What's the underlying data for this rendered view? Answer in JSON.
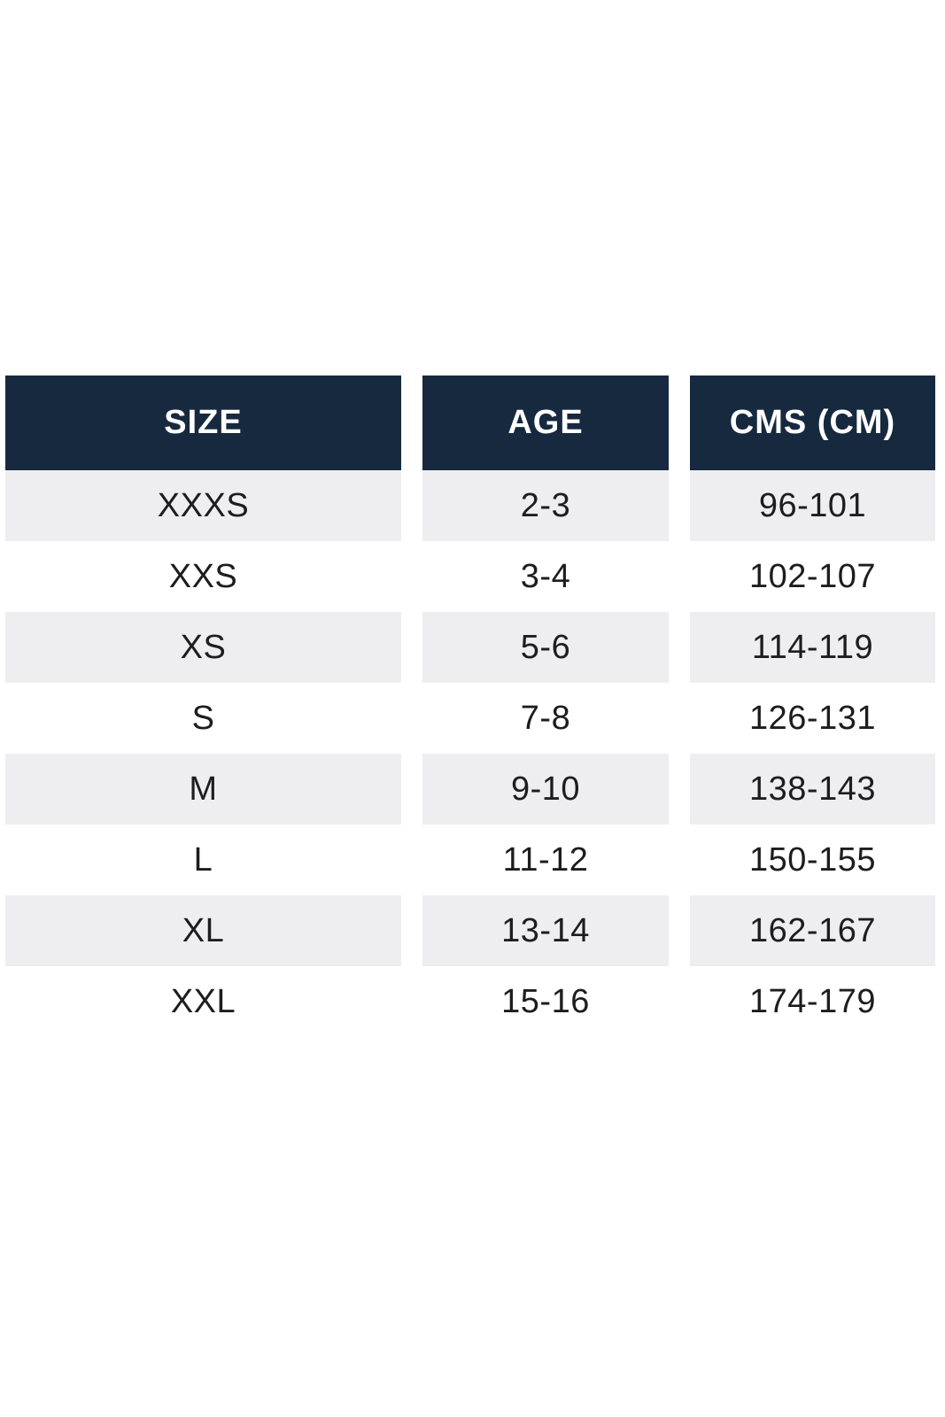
{
  "table": {
    "headers": [
      "SIZE",
      "AGE",
      "CMS (CM)"
    ],
    "rows": [
      {
        "size": "XXXS",
        "age": "2-3",
        "cms": "96-101"
      },
      {
        "size": "XXS",
        "age": "3-4",
        "cms": "102-107"
      },
      {
        "size": "XS",
        "age": "5-6",
        "cms": "114-119"
      },
      {
        "size": "S",
        "age": "7-8",
        "cms": "126-131"
      },
      {
        "size": "M",
        "age": "9-10",
        "cms": "138-143"
      },
      {
        "size": "L",
        "age": "11-12",
        "cms": "150-155"
      },
      {
        "size": "XL",
        "age": "13-14",
        "cms": "162-167"
      },
      {
        "size": "XXL",
        "age": "15-16",
        "cms": "174-179"
      }
    ],
    "colors": {
      "header_bg": "#16293f",
      "header_text": "#ffffff",
      "stripe_bg": "#eeeef0",
      "row_bg": "#ffffff",
      "cell_text": "#1d1d1f"
    }
  }
}
